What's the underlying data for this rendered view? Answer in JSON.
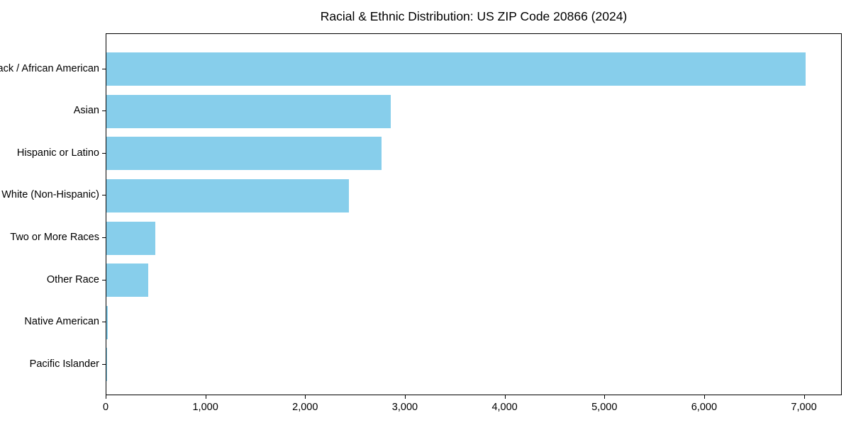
{
  "chart_data": {
    "type": "bar",
    "orientation": "horizontal",
    "title": "Racial & Ethnic Distribution: US ZIP Code 20866 (2024)",
    "categories": [
      "Black / African American",
      "Asian",
      "Hispanic or Latino",
      "White (Non-Hispanic)",
      "Two or More Races",
      "Other Race",
      "Native American",
      "Pacific Islander"
    ],
    "values": [
      7010,
      2850,
      2760,
      2435,
      490,
      420,
      15,
      10
    ],
    "xlabel": "",
    "ylabel": "",
    "xlim": [
      0,
      7380
    ],
    "xticks": [
      0,
      1000,
      2000,
      3000,
      4000,
      5000,
      6000,
      7000
    ],
    "xtick_labels": [
      "0",
      "1,000",
      "2,000",
      "3,000",
      "4,000",
      "5,000",
      "6,000",
      "7,000"
    ],
    "bar_color": "#87CEEB",
    "grid": false,
    "legend": null
  }
}
